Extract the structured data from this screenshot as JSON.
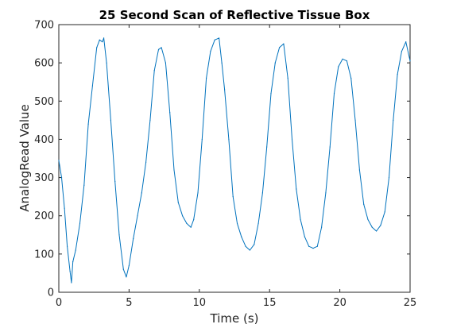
{
  "chart_data": {
    "type": "line",
    "title": "25 Second Scan of Reflective Tissue Box",
    "xlabel": "Time (s)",
    "ylabel": "AnalogRead Value",
    "xlim": [
      0,
      25
    ],
    "ylim": [
      0,
      700
    ],
    "xticks": [
      "0",
      "5",
      "10",
      "15",
      "20",
      "25"
    ],
    "yticks": [
      "0",
      "100",
      "200",
      "300",
      "400",
      "500",
      "600",
      "700"
    ],
    "grid": false,
    "series_color": "#0072BD",
    "series": [
      {
        "x": [
          0,
          0.2,
          0.4,
          0.6,
          0.8,
          0.9,
          1.0,
          1.2,
          1.5,
          1.8,
          2.1,
          2.4,
          2.7,
          2.9,
          3.1,
          3.2,
          3.4,
          3.7,
          4.0,
          4.3,
          4.6,
          4.8,
          5.0,
          5.3,
          5.6,
          5.9,
          6.2,
          6.5,
          6.8,
          7.1,
          7.3,
          7.6,
          7.9,
          8.2,
          8.5,
          8.8,
          9.1,
          9.4,
          9.6,
          9.9,
          10.2,
          10.5,
          10.8,
          11.1,
          11.4,
          11.6,
          11.8,
          12.1,
          12.4,
          12.7,
          13.0,
          13.3,
          13.6,
          13.9,
          14.2,
          14.5,
          14.8,
          15.1,
          15.4,
          15.7,
          16.0,
          16.3,
          16.6,
          16.9,
          17.2,
          17.5,
          17.8,
          18.1,
          18.4,
          18.7,
          19.0,
          19.3,
          19.6,
          19.9,
          20.2,
          20.5,
          20.8,
          21.1,
          21.4,
          21.7,
          22.0,
          22.3,
          22.6,
          22.9,
          23.2,
          23.5,
          23.8,
          24.1,
          24.4,
          24.7,
          25.0
        ],
        "y": [
          345,
          300,
          220,
          120,
          55,
          25,
          80,
          110,
          180,
          280,
          440,
          540,
          640,
          660,
          655,
          665,
          600,
          450,
          290,
          150,
          60,
          40,
          70,
          140,
          200,
          260,
          340,
          450,
          580,
          635,
          640,
          600,
          470,
          320,
          235,
          200,
          180,
          170,
          190,
          260,
          400,
          560,
          630,
          660,
          665,
          600,
          530,
          400,
          250,
          180,
          145,
          120,
          110,
          125,
          180,
          260,
          380,
          520,
          600,
          640,
          650,
          560,
          400,
          270,
          190,
          145,
          120,
          115,
          120,
          170,
          260,
          380,
          520,
          590,
          610,
          605,
          560,
          450,
          320,
          230,
          190,
          170,
          160,
          175,
          210,
          300,
          450,
          570,
          630,
          655,
          605
        ]
      }
    ]
  }
}
